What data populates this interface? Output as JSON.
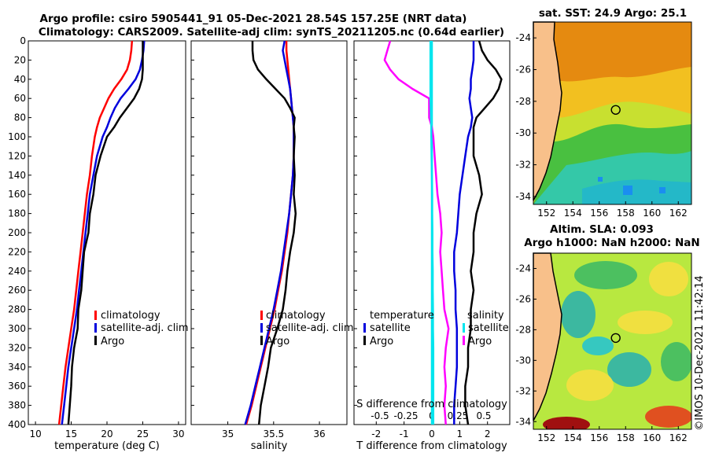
{
  "title_line1": "Argo profile: csiro 5905441_91 05-Dec-2021 28.54S 157.25E (NRT data)",
  "title_line2": "Climatology: CARS2009. Satellite-adj clim: synTS_20211205.nc (0.64d earlier)",
  "copyright": "©IMOS 10-Dec-2021 11:42:14",
  "colors": {
    "climatology": "#ff0000",
    "satellite": "#0000dd",
    "argo": "#000000",
    "t_diff": "#ff00ff",
    "s_diff": "#00e5ee",
    "land": "#f8c08a"
  },
  "depth_ticks": [
    "0",
    "20",
    "40",
    "60",
    "80",
    "100",
    "120",
    "140",
    "160",
    "180",
    "200",
    "220",
    "240",
    "260",
    "280",
    "300",
    "320",
    "340",
    "360",
    "380",
    "400"
  ],
  "chart_data": [
    {
      "type": "line",
      "id": "temperature",
      "xlabel": "temperature (deg C)",
      "ylabel": "",
      "xlim": [
        9,
        31
      ],
      "ylim": [
        400,
        0
      ],
      "x_ticks": [
        "10",
        "15",
        "20",
        "25",
        "30"
      ],
      "x_tick_values": [
        10,
        15,
        20,
        25,
        30
      ],
      "legend": [
        "climatology",
        "satellite-adj. clim",
        "Argo"
      ],
      "depth": [
        0,
        10,
        20,
        30,
        40,
        50,
        60,
        70,
        80,
        90,
        100,
        120,
        140,
        160,
        180,
        200,
        220,
        240,
        260,
        280,
        300,
        320,
        340,
        360,
        380,
        400
      ],
      "series": [
        {
          "name": "climatology",
          "values": [
            23.5,
            23.4,
            23.2,
            22.8,
            22.0,
            21.0,
            20.2,
            19.6,
            19.0,
            18.6,
            18.3,
            17.9,
            17.6,
            17.2,
            16.9,
            16.6,
            16.3,
            16.0,
            15.7,
            15.4,
            15.0,
            14.6,
            14.2,
            13.9,
            13.6,
            13.3
          ]
        },
        {
          "name": "satellite-adj. clim",
          "values": [
            25.2,
            25.1,
            24.9,
            24.6,
            24.0,
            23.0,
            21.9,
            21.1,
            20.5,
            20.0,
            19.4,
            18.6,
            18.1,
            17.6,
            17.3,
            17.0,
            16.7,
            16.4,
            16.1,
            15.8,
            15.4,
            15.0,
            14.6,
            14.3,
            14.0,
            13.7
          ]
        },
        {
          "name": "Argo",
          "values": [
            25.0,
            25.0,
            25.0,
            25.0,
            24.9,
            24.5,
            23.8,
            22.8,
            21.8,
            21.0,
            20.0,
            19.1,
            18.4,
            18.1,
            17.6,
            17.4,
            16.8,
            16.6,
            16.4,
            16.0,
            15.9,
            15.4,
            15.1,
            15.0,
            14.8,
            14.6
          ]
        }
      ]
    },
    {
      "type": "line",
      "id": "salinity",
      "xlabel": "salinity",
      "ylabel": "",
      "xlim": [
        34.6,
        36.3
      ],
      "ylim": [
        400,
        0
      ],
      "x_ticks": [
        "35",
        "35.5",
        "36"
      ],
      "x_tick_values": [
        35,
        35.5,
        36
      ],
      "legend": [
        "climatology",
        "satellite-adj. clim",
        "Argo"
      ],
      "depth": [
        0,
        10,
        20,
        30,
        40,
        50,
        60,
        70,
        80,
        90,
        100,
        120,
        140,
        160,
        180,
        200,
        220,
        240,
        260,
        280,
        300,
        320,
        340,
        360,
        380,
        400
      ],
      "series": [
        {
          "name": "climatology",
          "values": [
            35.64,
            35.64,
            35.65,
            35.66,
            35.67,
            35.68,
            35.69,
            35.7,
            35.71,
            35.72,
            35.72,
            35.72,
            35.71,
            35.69,
            35.67,
            35.65,
            35.62,
            35.59,
            35.55,
            35.51,
            35.46,
            35.41,
            35.36,
            35.31,
            35.26,
            35.2
          ]
        },
        {
          "name": "satellite-adj. clim",
          "values": [
            35.62,
            35.6,
            35.62,
            35.64,
            35.66,
            35.68,
            35.69,
            35.7,
            35.71,
            35.72,
            35.72,
            35.72,
            35.71,
            35.69,
            35.67,
            35.64,
            35.61,
            35.58,
            35.54,
            35.5,
            35.45,
            35.4,
            35.35,
            35.3,
            35.25,
            35.19
          ]
        },
        {
          "name": "Argo",
          "values": [
            35.27,
            35.27,
            35.28,
            35.33,
            35.42,
            35.52,
            35.62,
            35.68,
            35.73,
            35.72,
            35.73,
            35.72,
            35.73,
            35.72,
            35.74,
            35.72,
            35.68,
            35.65,
            35.63,
            35.6,
            35.54,
            35.47,
            35.44,
            35.4,
            35.36,
            35.34
          ]
        }
      ]
    },
    {
      "type": "line",
      "id": "differences",
      "xlabel": "T difference from climatology",
      "ylabel": "",
      "xlim": [
        -2.8,
        2.8
      ],
      "ylim": [
        400,
        0
      ],
      "x_ticks": [
        "-2",
        "-1",
        "0",
        "1",
        "2"
      ],
      "x_tick_values": [
        -2,
        -1,
        0,
        1,
        2
      ],
      "top_xlabel": "S difference from climatology",
      "top_x_ticks": [
        "-0.5",
        "-0.25",
        "0",
        "0.25",
        "0.5"
      ],
      "top_x_tick_values": [
        -0.5,
        -0.25,
        0,
        0.25,
        0.5
      ],
      "legend_temperature": [
        "temperature",
        "satellite",
        "Argo"
      ],
      "legend_salinity": [
        "salinity",
        "satellite",
        "Argo"
      ],
      "depth": [
        0,
        10,
        20,
        30,
        40,
        50,
        60,
        70,
        80,
        90,
        100,
        120,
        140,
        160,
        180,
        200,
        220,
        240,
        260,
        280,
        300,
        320,
        340,
        360,
        380,
        400
      ],
      "series": [
        {
          "name": "temperature satellite",
          "values": [
            0,
            0,
            0,
            0,
            0,
            0,
            0,
            0,
            0,
            0,
            0,
            0,
            0,
            0,
            0,
            0,
            0,
            0,
            0,
            0,
            0,
            0,
            0,
            0,
            0,
            0
          ]
        },
        {
          "name": "temperature Argo",
          "values": [
            -1.5,
            -1.6,
            -1.7,
            -1.5,
            -1.2,
            -0.7,
            -0.1,
            -0.1,
            -0.1,
            0.0,
            0.05,
            0.1,
            0.15,
            0.2,
            0.3,
            0.35,
            0.3,
            0.35,
            0.4,
            0.45,
            0.6,
            0.5,
            0.45,
            0.5,
            0.45,
            0.5
          ]
        },
        {
          "name": "salinity satellite",
          "values": [
            1.5,
            1.5,
            1.5,
            1.45,
            1.4,
            1.4,
            1.35,
            1.4,
            1.45,
            1.4,
            1.3,
            1.2,
            1.1,
            1.0,
            0.95,
            0.9,
            0.8,
            0.8,
            0.85,
            0.85,
            0.9,
            0.9,
            0.9,
            0.85,
            0.8,
            0.8
          ]
        },
        {
          "name": "salinity Argo",
          "values": [
            1.7,
            1.8,
            2.0,
            2.3,
            2.5,
            2.4,
            2.2,
            1.9,
            1.6,
            1.5,
            1.5,
            1.5,
            1.7,
            1.8,
            1.6,
            1.5,
            1.5,
            1.4,
            1.5,
            1.4,
            1.4,
            1.3,
            1.3,
            1.2,
            1.2,
            1.3
          ]
        },
        {
          "name": "S diff near zero",
          "values": [
            -0.05,
            -0.05,
            -0.05,
            -0.05,
            -0.05,
            -0.05,
            -0.05,
            -0.04,
            -0.03,
            -0.02,
            -0.02,
            -0.01,
            0,
            0.01,
            0.01,
            0.02,
            0.02,
            0.03,
            0.03,
            0.04,
            0.04,
            0.05,
            0.05,
            0.05,
            0.05,
            0.05
          ]
        }
      ]
    }
  ],
  "map_sst": {
    "title": "sat. SST: 24.9 Argo: 25.1",
    "x_ticks": [
      "152",
      "154",
      "156",
      "158",
      "160",
      "162"
    ],
    "y_ticks": [
      "-24",
      "-26",
      "-28",
      "-30",
      "-32",
      "-34"
    ],
    "marker": {
      "lon": 157.25,
      "lat": -28.54
    }
  },
  "map_sla": {
    "title_line1": "Altim. SLA: 0.093",
    "title_line2": "Argo h1000: NaN h2000: NaN",
    "x_ticks": [
      "152",
      "154",
      "156",
      "158",
      "160",
      "162"
    ],
    "y_ticks": [
      "-24",
      "-26",
      "-28",
      "-30",
      "-32",
      "-34"
    ],
    "marker": {
      "lon": 157.25,
      "lat": -28.54
    }
  }
}
